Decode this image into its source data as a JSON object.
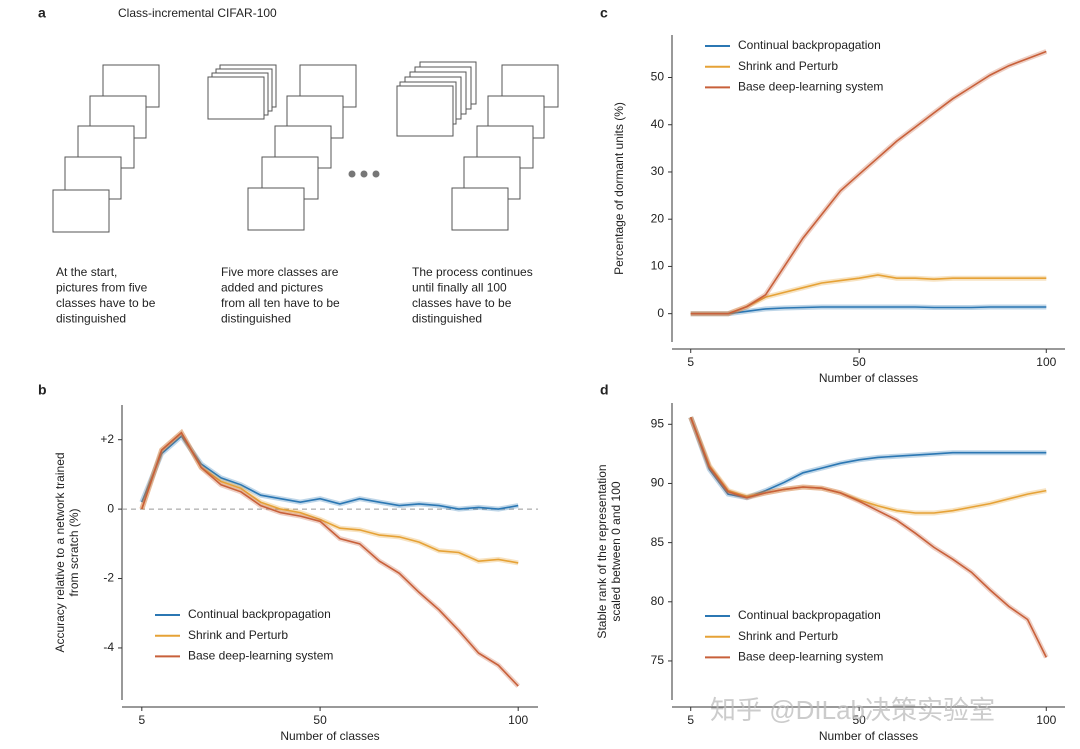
{
  "figure_a": {
    "label": "a",
    "title": "Class-incremental CIFAR-100",
    "captions": [
      [
        "At the start,",
        "pictures from five",
        "classes have to be",
        "distinguished"
      ],
      [
        "Five more classes are",
        "added and pictures",
        "from all ten have to be",
        "distinguished"
      ],
      [
        "The process continues",
        "until finally all 100",
        "classes have to be",
        "distinguished"
      ]
    ]
  },
  "watermark": "知乎 @DILab决策实验室",
  "chart_data": [
    {
      "type": "line",
      "panel": "b",
      "xlabel": "Number of classes",
      "ylabel": [
        "Accuracy relative to a network trained",
        "from scratch (%)"
      ],
      "x": [
        5,
        10,
        15,
        20,
        25,
        30,
        35,
        40,
        45,
        50,
        55,
        60,
        65,
        70,
        75,
        80,
        85,
        90,
        95,
        100
      ],
      "xlim": [
        0,
        105
      ],
      "xticks": [
        5,
        50,
        100
      ],
      "ylim": [
        -5.5,
        3
      ],
      "yticks": [
        {
          "value": 2,
          "label": "+2"
        },
        0,
        -2,
        -4
      ],
      "zero_line": true,
      "legend": "lower left",
      "series": [
        {
          "name": "Continual backpropagation",
          "color": "#2b77b3",
          "values": [
            0.2,
            1.6,
            2.1,
            1.3,
            0.9,
            0.7,
            0.4,
            0.3,
            0.2,
            0.3,
            0.15,
            0.3,
            0.2,
            0.1,
            0.15,
            0.1,
            0.0,
            0.05,
            0.0,
            0.1
          ]
        },
        {
          "name": "Shrink and Perturb",
          "color": "#e6a236",
          "values": [
            0.0,
            1.7,
            2.2,
            1.2,
            0.8,
            0.6,
            0.2,
            0.0,
            -0.1,
            -0.3,
            -0.55,
            -0.6,
            -0.75,
            -0.8,
            -0.95,
            -1.2,
            -1.25,
            -1.5,
            -1.45,
            -1.55
          ]
        },
        {
          "name": "Base deep-learning system",
          "color": "#c8603a",
          "values": [
            0.0,
            1.7,
            2.2,
            1.2,
            0.7,
            0.5,
            0.1,
            -0.1,
            -0.2,
            -0.35,
            -0.85,
            -1.0,
            -1.5,
            -1.85,
            -2.4,
            -2.9,
            -3.5,
            -4.15,
            -4.5,
            -5.1
          ]
        }
      ]
    },
    {
      "type": "line",
      "panel": "c",
      "xlabel": "Number of classes",
      "ylabel": [
        "Percentage of dormant units (%)"
      ],
      "x": [
        5,
        10,
        15,
        20,
        25,
        30,
        35,
        40,
        45,
        50,
        55,
        60,
        65,
        70,
        75,
        80,
        85,
        90,
        95,
        100
      ],
      "xlim": [
        0,
        105
      ],
      "xticks": [
        5,
        50,
        100
      ],
      "ylim": [
        -6,
        59
      ],
      "yticks": [
        0,
        10,
        20,
        30,
        40,
        50
      ],
      "zero_line": false,
      "legend": "upper left",
      "series": [
        {
          "name": "Continual backpropagation",
          "color": "#2b77b3",
          "values": [
            0,
            0,
            0,
            0.5,
            1.0,
            1.2,
            1.3,
            1.4,
            1.4,
            1.4,
            1.4,
            1.4,
            1.4,
            1.3,
            1.3,
            1.3,
            1.4,
            1.4,
            1.4,
            1.4
          ]
        },
        {
          "name": "Shrink and Perturb",
          "color": "#e6a236",
          "values": [
            0,
            0,
            0,
            1.5,
            3.5,
            4.5,
            5.5,
            6.5,
            7,
            7.5,
            8.2,
            7.5,
            7.5,
            7.3,
            7.5,
            7.5,
            7.5,
            7.5,
            7.5,
            7.5
          ]
        },
        {
          "name": "Base deep-learning system",
          "color": "#c8603a",
          "values": [
            0,
            0,
            0,
            1.5,
            4,
            10,
            16,
            21,
            26,
            29.5,
            33,
            36.5,
            39.5,
            42.5,
            45.5,
            48,
            50.5,
            52.5,
            54,
            55.5
          ]
        }
      ]
    },
    {
      "type": "line",
      "panel": "d",
      "xlabel": "Number of classes",
      "ylabel": [
        "Stable rank of the representation",
        "scaled between 0 and 100"
      ],
      "x": [
        5,
        10,
        15,
        20,
        25,
        30,
        35,
        40,
        45,
        50,
        55,
        60,
        65,
        70,
        75,
        80,
        85,
        90,
        95,
        100
      ],
      "xlim": [
        0,
        105
      ],
      "xticks": [
        5,
        50,
        100
      ],
      "ylim": [
        71.7,
        96.8
      ],
      "yticks": [
        75,
        80,
        85,
        90,
        95
      ],
      "zero_line": false,
      "legend": "lower left",
      "series": [
        {
          "name": "Continual backpropagation",
          "color": "#2b77b3",
          "values": [
            95.6,
            91.2,
            89.1,
            88.8,
            89.4,
            90.1,
            90.9,
            91.3,
            91.7,
            92.0,
            92.2,
            92.3,
            92.4,
            92.5,
            92.6,
            92.6,
            92.6,
            92.6,
            92.6,
            92.6
          ]
        },
        {
          "name": "Shrink and Perturb",
          "color": "#e6a236",
          "values": [
            95.6,
            91.5,
            89.4,
            88.9,
            89.2,
            89.5,
            89.7,
            89.6,
            89.2,
            88.6,
            88.1,
            87.7,
            87.5,
            87.5,
            87.7,
            88.0,
            88.3,
            88.7,
            89.1,
            89.4
          ]
        },
        {
          "name": "Base deep-learning system",
          "color": "#c8603a",
          "values": [
            95.6,
            91.4,
            89.3,
            88.8,
            89.2,
            89.5,
            89.7,
            89.6,
            89.2,
            88.5,
            87.7,
            86.9,
            85.8,
            84.6,
            83.6,
            82.5,
            81.0,
            79.6,
            78.5,
            75.3
          ]
        }
      ]
    }
  ]
}
